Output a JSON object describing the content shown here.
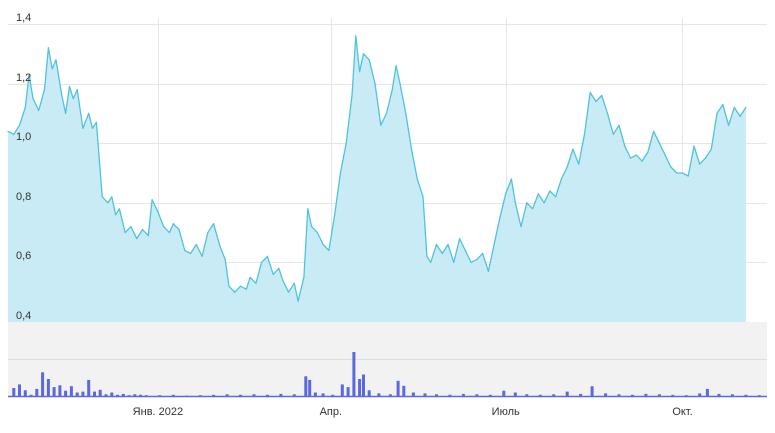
{
  "chart_data": [
    {
      "type": "area",
      "title": "",
      "xlabel": "",
      "ylabel": "",
      "ylim": [
        0.4,
        1.4
      ],
      "y_ticks": [
        "0,4",
        "0,6",
        "0,8",
        "1,0",
        "1,2",
        "1,4"
      ],
      "y_tick_values": [
        0.4,
        0.6,
        0.8,
        1.0,
        1.2,
        1.4
      ],
      "x_ticks": [
        "Янв. 2022",
        "Апр.",
        "Июль",
        "Окт."
      ],
      "x_tick_dates": [
        "2022-01-01",
        "2022-04-01",
        "2022-07-01",
        "2022-10-01"
      ],
      "x_range": [
        "2021-10-15",
        "2022-11-14"
      ],
      "grid": true,
      "colors": {
        "line": "#4fc3dc",
        "fill": "#c9ebf6",
        "grid": "#e6e6e6"
      },
      "points": [
        [
          "2021-10-15",
          1.04
        ],
        [
          "2021-10-18",
          1.03
        ],
        [
          "2021-10-21",
          1.06
        ],
        [
          "2021-10-24",
          1.12
        ],
        [
          "2021-10-26",
          1.23
        ],
        [
          "2021-10-28",
          1.15
        ],
        [
          "2021-10-31",
          1.11
        ],
        [
          "2021-11-03",
          1.18
        ],
        [
          "2021-11-05",
          1.32
        ],
        [
          "2021-11-07",
          1.25
        ],
        [
          "2021-11-09",
          1.28
        ],
        [
          "2021-11-12",
          1.16
        ],
        [
          "2021-11-14",
          1.1
        ],
        [
          "2021-11-16",
          1.19
        ],
        [
          "2021-11-18",
          1.15
        ],
        [
          "2021-11-20",
          1.18
        ],
        [
          "2021-11-23",
          1.05
        ],
        [
          "2021-11-26",
          1.1
        ],
        [
          "2021-11-28",
          1.05
        ],
        [
          "2021-11-30",
          1.07
        ],
        [
          "2021-12-03",
          0.82
        ],
        [
          "2021-12-06",
          0.8
        ],
        [
          "2021-12-08",
          0.82
        ],
        [
          "2021-12-10",
          0.76
        ],
        [
          "2021-12-12",
          0.78
        ],
        [
          "2021-12-15",
          0.7
        ],
        [
          "2021-12-18",
          0.72
        ],
        [
          "2021-12-21",
          0.68
        ],
        [
          "2021-12-24",
          0.71
        ],
        [
          "2021-12-27",
          0.69
        ],
        [
          "2021-12-29",
          0.81
        ],
        [
          "2022-01-01",
          0.77
        ],
        [
          "2022-01-04",
          0.72
        ],
        [
          "2022-01-07",
          0.7
        ],
        [
          "2022-01-09",
          0.73
        ],
        [
          "2022-01-12",
          0.71
        ],
        [
          "2022-01-15",
          0.64
        ],
        [
          "2022-01-18",
          0.63
        ],
        [
          "2022-01-21",
          0.66
        ],
        [
          "2022-01-24",
          0.62
        ],
        [
          "2022-01-27",
          0.7
        ],
        [
          "2022-01-30",
          0.73
        ],
        [
          "2022-02-02",
          0.66
        ],
        [
          "2022-02-05",
          0.61
        ],
        [
          "2022-02-07",
          0.52
        ],
        [
          "2022-02-10",
          0.5
        ],
        [
          "2022-02-13",
          0.52
        ],
        [
          "2022-02-16",
          0.51
        ],
        [
          "2022-02-18",
          0.55
        ],
        [
          "2022-02-21",
          0.53
        ],
        [
          "2022-02-24",
          0.6
        ],
        [
          "2022-02-27",
          0.62
        ],
        [
          "2022-03-02",
          0.56
        ],
        [
          "2022-03-05",
          0.58
        ],
        [
          "2022-03-07",
          0.54
        ],
        [
          "2022-03-10",
          0.5
        ],
        [
          "2022-03-13",
          0.53
        ],
        [
          "2022-03-15",
          0.47
        ],
        [
          "2022-03-18",
          0.55
        ],
        [
          "2022-03-20",
          0.78
        ],
        [
          "2022-03-22",
          0.72
        ],
        [
          "2022-03-25",
          0.7
        ],
        [
          "2022-03-28",
          0.66
        ],
        [
          "2022-03-31",
          0.64
        ],
        [
          "2022-04-03",
          0.76
        ],
        [
          "2022-04-06",
          0.9
        ],
        [
          "2022-04-09",
          1.0
        ],
        [
          "2022-04-12",
          1.16
        ],
        [
          "2022-04-14",
          1.36
        ],
        [
          "2022-04-16",
          1.24
        ],
        [
          "2022-04-18",
          1.3
        ],
        [
          "2022-04-21",
          1.28
        ],
        [
          "2022-04-24",
          1.2
        ],
        [
          "2022-04-27",
          1.06
        ],
        [
          "2022-04-30",
          1.1
        ],
        [
          "2022-05-03",
          1.18
        ],
        [
          "2022-05-05",
          1.26
        ],
        [
          "2022-05-07",
          1.2
        ],
        [
          "2022-05-10",
          1.1
        ],
        [
          "2022-05-13",
          0.98
        ],
        [
          "2022-05-16",
          0.88
        ],
        [
          "2022-05-19",
          0.82
        ],
        [
          "2022-05-21",
          0.62
        ],
        [
          "2022-05-23",
          0.6
        ],
        [
          "2022-05-26",
          0.66
        ],
        [
          "2022-05-29",
          0.63
        ],
        [
          "2022-06-01",
          0.66
        ],
        [
          "2022-06-04",
          0.6
        ],
        [
          "2022-06-07",
          0.68
        ],
        [
          "2022-06-10",
          0.64
        ],
        [
          "2022-06-13",
          0.6
        ],
        [
          "2022-06-16",
          0.61
        ],
        [
          "2022-06-19",
          0.63
        ],
        [
          "2022-06-22",
          0.57
        ],
        [
          "2022-06-25",
          0.66
        ],
        [
          "2022-06-28",
          0.75
        ],
        [
          "2022-07-01",
          0.83
        ],
        [
          "2022-07-04",
          0.88
        ],
        [
          "2022-07-06",
          0.8
        ],
        [
          "2022-07-09",
          0.72
        ],
        [
          "2022-07-12",
          0.8
        ],
        [
          "2022-07-15",
          0.78
        ],
        [
          "2022-07-18",
          0.83
        ],
        [
          "2022-07-21",
          0.8
        ],
        [
          "2022-07-24",
          0.84
        ],
        [
          "2022-07-27",
          0.82
        ],
        [
          "2022-07-30",
          0.88
        ],
        [
          "2022-08-02",
          0.92
        ],
        [
          "2022-08-05",
          0.98
        ],
        [
          "2022-08-08",
          0.93
        ],
        [
          "2022-08-11",
          1.03
        ],
        [
          "2022-08-14",
          1.17
        ],
        [
          "2022-08-17",
          1.14
        ],
        [
          "2022-08-20",
          1.16
        ],
        [
          "2022-08-23",
          1.1
        ],
        [
          "2022-08-26",
          1.03
        ],
        [
          "2022-08-29",
          1.06
        ],
        [
          "2022-09-01",
          0.99
        ],
        [
          "2022-09-04",
          0.95
        ],
        [
          "2022-09-07",
          0.96
        ],
        [
          "2022-09-10",
          0.94
        ],
        [
          "2022-09-13",
          0.97
        ],
        [
          "2022-09-16",
          1.04
        ],
        [
          "2022-09-19",
          1.0
        ],
        [
          "2022-09-22",
          0.96
        ],
        [
          "2022-09-25",
          0.92
        ],
        [
          "2022-09-28",
          0.9
        ],
        [
          "2022-10-01",
          0.9
        ],
        [
          "2022-10-04",
          0.89
        ],
        [
          "2022-10-07",
          0.99
        ],
        [
          "2022-10-10",
          0.93
        ],
        [
          "2022-10-13",
          0.95
        ],
        [
          "2022-10-16",
          0.98
        ],
        [
          "2022-10-19",
          1.1
        ],
        [
          "2022-10-22",
          1.13
        ],
        [
          "2022-10-25",
          1.06
        ],
        [
          "2022-10-28",
          1.12
        ],
        [
          "2022-10-31",
          1.09
        ],
        [
          "2022-11-03",
          1.12
        ]
      ]
    },
    {
      "type": "bar",
      "title": "",
      "xlabel": "",
      "ylabel": "",
      "x_range": [
        "2021-10-15",
        "2022-11-14"
      ],
      "ylim": [
        0,
        1
      ],
      "colors": {
        "bar": "#5c68de",
        "background": "#f2f2f2"
      },
      "points": [
        [
          "2021-10-18",
          0.2
        ],
        [
          "2021-10-21",
          0.28
        ],
        [
          "2021-10-24",
          0.15
        ],
        [
          "2021-10-27",
          0.05
        ],
        [
          "2021-10-30",
          0.18
        ],
        [
          "2021-11-02",
          0.55
        ],
        [
          "2021-11-05",
          0.4
        ],
        [
          "2021-11-08",
          0.22
        ],
        [
          "2021-11-11",
          0.26
        ],
        [
          "2021-11-14",
          0.14
        ],
        [
          "2021-11-17",
          0.24
        ],
        [
          "2021-11-20",
          0.1
        ],
        [
          "2021-11-23",
          0.12
        ],
        [
          "2021-11-26",
          0.38
        ],
        [
          "2021-11-29",
          0.12
        ],
        [
          "2021-12-02",
          0.16
        ],
        [
          "2021-12-05",
          0.06
        ],
        [
          "2021-12-08",
          0.1
        ],
        [
          "2021-12-11",
          0.05
        ],
        [
          "2021-12-14",
          0.07
        ],
        [
          "2021-12-17",
          0.04
        ],
        [
          "2021-12-20",
          0.06
        ],
        [
          "2021-12-23",
          0.05
        ],
        [
          "2021-12-26",
          0.04
        ],
        [
          "2022-01-02",
          0.04
        ],
        [
          "2022-01-09",
          0.05
        ],
        [
          "2022-01-16",
          0.03
        ],
        [
          "2022-01-23",
          0.04
        ],
        [
          "2022-01-30",
          0.05
        ],
        [
          "2022-02-06",
          0.06
        ],
        [
          "2022-02-13",
          0.05
        ],
        [
          "2022-02-20",
          0.06
        ],
        [
          "2022-02-27",
          0.05
        ],
        [
          "2022-03-06",
          0.07
        ],
        [
          "2022-03-13",
          0.06
        ],
        [
          "2022-03-19",
          0.46
        ],
        [
          "2022-03-21",
          0.38
        ],
        [
          "2022-03-24",
          0.1
        ],
        [
          "2022-03-28",
          0.08
        ],
        [
          "2022-04-02",
          0.05
        ],
        [
          "2022-04-07",
          0.28
        ],
        [
          "2022-04-10",
          0.22
        ],
        [
          "2022-04-13",
          1.0
        ],
        [
          "2022-04-16",
          0.4
        ],
        [
          "2022-04-18",
          0.5
        ],
        [
          "2022-04-21",
          0.15
        ],
        [
          "2022-04-26",
          0.08
        ],
        [
          "2022-05-02",
          0.06
        ],
        [
          "2022-05-06",
          0.36
        ],
        [
          "2022-05-09",
          0.25
        ],
        [
          "2022-05-14",
          0.1
        ],
        [
          "2022-05-20",
          0.08
        ],
        [
          "2022-05-26",
          0.06
        ],
        [
          "2022-06-02",
          0.05
        ],
        [
          "2022-06-09",
          0.07
        ],
        [
          "2022-06-16",
          0.06
        ],
        [
          "2022-06-23",
          0.05
        ],
        [
          "2022-06-30",
          0.14
        ],
        [
          "2022-07-06",
          0.1
        ],
        [
          "2022-07-12",
          0.06
        ],
        [
          "2022-07-19",
          0.05
        ],
        [
          "2022-07-26",
          0.06
        ],
        [
          "2022-08-02",
          0.12
        ],
        [
          "2022-08-09",
          0.07
        ],
        [
          "2022-08-15",
          0.24
        ],
        [
          "2022-08-22",
          0.08
        ],
        [
          "2022-08-29",
          0.06
        ],
        [
          "2022-09-05",
          0.05
        ],
        [
          "2022-09-12",
          0.07
        ],
        [
          "2022-09-19",
          0.06
        ],
        [
          "2022-09-26",
          0.05
        ],
        [
          "2022-10-03",
          0.04
        ],
        [
          "2022-10-10",
          0.08
        ],
        [
          "2022-10-14",
          0.18
        ],
        [
          "2022-10-20",
          0.07
        ],
        [
          "2022-10-27",
          0.06
        ],
        [
          "2022-11-03",
          0.05
        ],
        [
          "2022-11-10",
          0.04
        ]
      ]
    }
  ]
}
